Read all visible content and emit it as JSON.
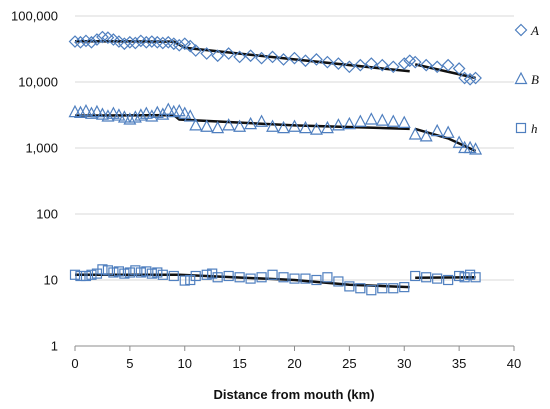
{
  "chart_data": {
    "type": "scatter",
    "xlabel": "Distance from mouth (km)",
    "ylabel": "",
    "yscale": "log",
    "xlim": [
      0,
      40
    ],
    "ylim": [
      1,
      100000
    ],
    "x_ticks": [
      "0",
      "5",
      "10",
      "15",
      "20",
      "25",
      "30",
      "35",
      "40"
    ],
    "y_ticks": [
      "1",
      "10",
      "100",
      "1,000",
      "10,000",
      "100,000"
    ],
    "grid": "horizontal",
    "legend_position": "right",
    "marker_color": "#4f7fbf",
    "fit_color": "#111111",
    "series": [
      {
        "name": "A",
        "marker": "diamond",
        "x": [
          0,
          0.5,
          1,
          1.5,
          2,
          2.5,
          3,
          3.5,
          4,
          4.5,
          5,
          5.5,
          6,
          6.5,
          7,
          7.5,
          8,
          8.5,
          9,
          9.5,
          10,
          10.5,
          11,
          12,
          13,
          14,
          15,
          16,
          17,
          18,
          19,
          20,
          21,
          22,
          23,
          24,
          25,
          26,
          27,
          28,
          29,
          30,
          30.5,
          31,
          32,
          33,
          34,
          35,
          35.5,
          36,
          36.5
        ],
        "y": [
          41000,
          40000,
          42000,
          40000,
          44000,
          48000,
          47000,
          44000,
          41000,
          38000,
          40000,
          39000,
          42000,
          40000,
          41000,
          40000,
          39000,
          40000,
          38000,
          36000,
          38000,
          35000,
          30000,
          27000,
          25000,
          27000,
          24000,
          25000,
          23000,
          24000,
          22000,
          23000,
          21000,
          22000,
          20000,
          19000,
          17000,
          18000,
          19000,
          18000,
          17000,
          19000,
          21000,
          20000,
          18000,
          17000,
          18000,
          16000,
          11500,
          11000,
          11500
        ]
      },
      {
        "name": "B",
        "marker": "triangle",
        "x": [
          0,
          0.5,
          1,
          1.5,
          2,
          2.5,
          3,
          3.5,
          4,
          4.5,
          5,
          5.5,
          6,
          6.5,
          7,
          7.5,
          8,
          8.5,
          9,
          9.5,
          10,
          10.5,
          11,
          12,
          13,
          14,
          15,
          16,
          17,
          18,
          19,
          20,
          21,
          22,
          23,
          24,
          25,
          26,
          27,
          28,
          29,
          30,
          31,
          32,
          33,
          34,
          35,
          35.5,
          36,
          36.5
        ],
        "y": [
          3500,
          3400,
          3600,
          3300,
          3500,
          3200,
          3000,
          3300,
          3100,
          2900,
          2700,
          2900,
          3100,
          3300,
          3000,
          3400,
          3200,
          3800,
          3500,
          3600,
          3300,
          3000,
          2200,
          2100,
          2000,
          2200,
          2100,
          2300,
          2500,
          2100,
          2000,
          2100,
          2000,
          1900,
          2000,
          2200,
          2300,
          2500,
          2700,
          2600,
          2500,
          2400,
          1600,
          1500,
          1800,
          1700,
          1200,
          1000,
          1000,
          950
        ]
      },
      {
        "name": "h",
        "marker": "square",
        "x": [
          0,
          0.5,
          1,
          1.5,
          2,
          2.5,
          3,
          3.5,
          4,
          4.5,
          5,
          5.5,
          6,
          6.5,
          7,
          7.5,
          8,
          9,
          10,
          10.5,
          11,
          12,
          12.5,
          13,
          14,
          15,
          16,
          17,
          18,
          19,
          20,
          21,
          22,
          23,
          24,
          25,
          26,
          27,
          28,
          29,
          30,
          31,
          32,
          33,
          34,
          35,
          35.5,
          36,
          36.5
        ],
        "y": [
          12,
          11.5,
          11.5,
          12,
          12.5,
          14.5,
          14,
          13,
          13.5,
          12.5,
          13,
          14,
          13,
          13.5,
          12.5,
          13,
          12,
          11.5,
          9.8,
          10,
          11.5,
          12,
          12.5,
          11,
          11.5,
          11,
          10.5,
          11,
          12,
          11,
          10.5,
          10.5,
          10,
          11,
          9.5,
          8,
          7.5,
          7,
          7.5,
          7.5,
          7.8,
          11.5,
          11,
          10.5,
          10,
          11.5,
          11,
          12,
          11
        ]
      }
    ],
    "trend_lines": [
      {
        "series": "A",
        "points": [
          [
            0,
            41500
          ],
          [
            9,
            41000
          ],
          [
            10,
            33000
          ],
          [
            20,
            22000
          ],
          [
            30.5,
            14500
          ]
        ]
      },
      {
        "series": "A",
        "points": [
          [
            31,
            18500
          ],
          [
            36.5,
            11500
          ]
        ]
      },
      {
        "series": "B",
        "points": [
          [
            0,
            3100
          ],
          [
            9,
            3150
          ],
          [
            9.5,
            2700
          ],
          [
            20,
            2200
          ],
          [
            30.5,
            1950
          ]
        ]
      },
      {
        "series": "B",
        "points": [
          [
            31,
            1950
          ],
          [
            34,
            1400
          ],
          [
            36.5,
            900
          ]
        ]
      },
      {
        "series": "h",
        "points": [
          [
            0,
            12
          ],
          [
            9.5,
            12
          ],
          [
            20,
            10
          ],
          [
            25,
            8.5
          ],
          [
            30.5,
            7.8
          ]
        ]
      },
      {
        "series": "h",
        "points": [
          [
            31,
            10.8
          ],
          [
            36.5,
            11
          ]
        ]
      }
    ]
  }
}
